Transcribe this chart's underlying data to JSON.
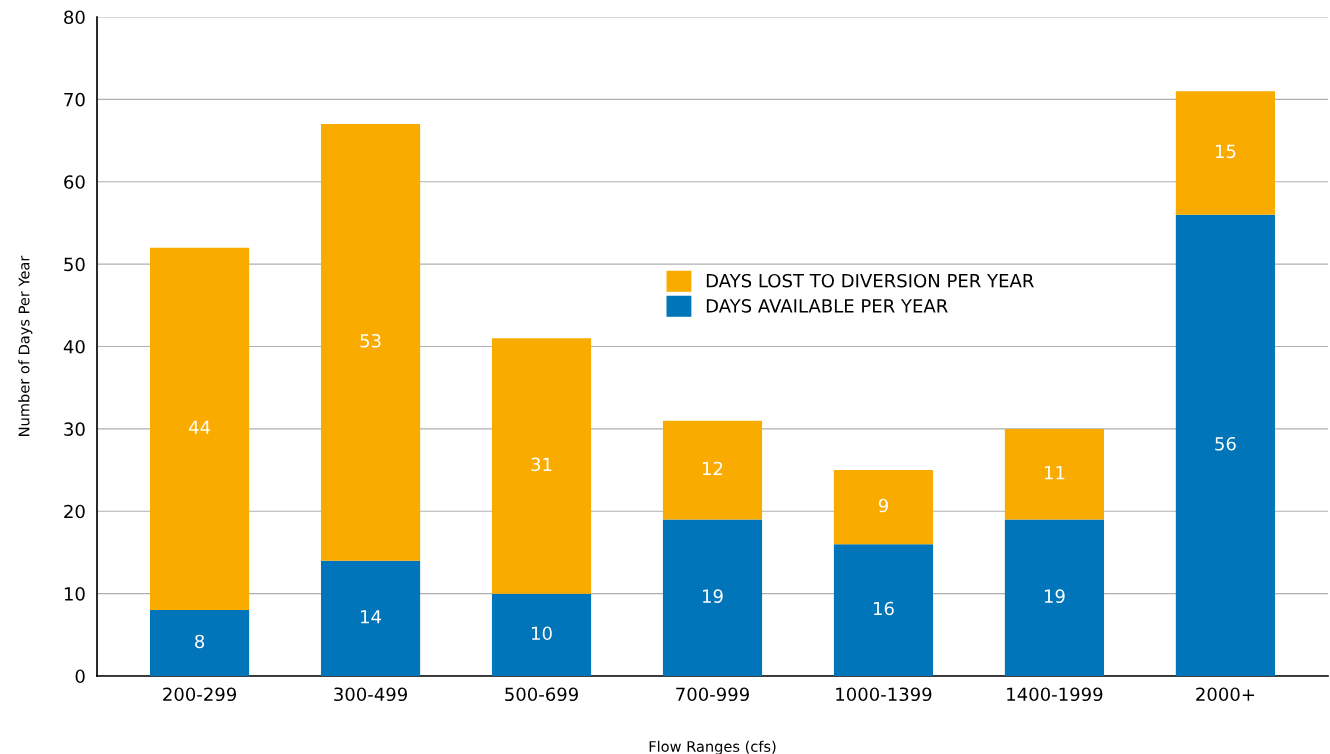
{
  "chart_data": {
    "type": "bar",
    "stacked": true,
    "xlabel": "Flow Ranges (cfs)",
    "ylabel": "Number of Days Per Year",
    "categories": [
      "200-299",
      "300-499",
      "500-699",
      "700-999",
      "1000-1399",
      "1400-1999",
      "2000+"
    ],
    "series": [
      {
        "name": "DAYS AVAILABLE PER YEAR",
        "color": "#0075b9",
        "values": [
          8,
          14,
          10,
          19,
          16,
          19,
          56
        ]
      },
      {
        "name": "DAYS LOST TO DIVERSION PER YEAR",
        "color": "#f9ab00",
        "values": [
          44,
          53,
          31,
          12,
          9,
          11,
          15
        ]
      }
    ],
    "ylim": [
      0,
      80
    ],
    "yticks": [
      0,
      10,
      20,
      30,
      40,
      50,
      60,
      70,
      80
    ],
    "grid": "y",
    "legend": "center",
    "data_labels": true
  }
}
